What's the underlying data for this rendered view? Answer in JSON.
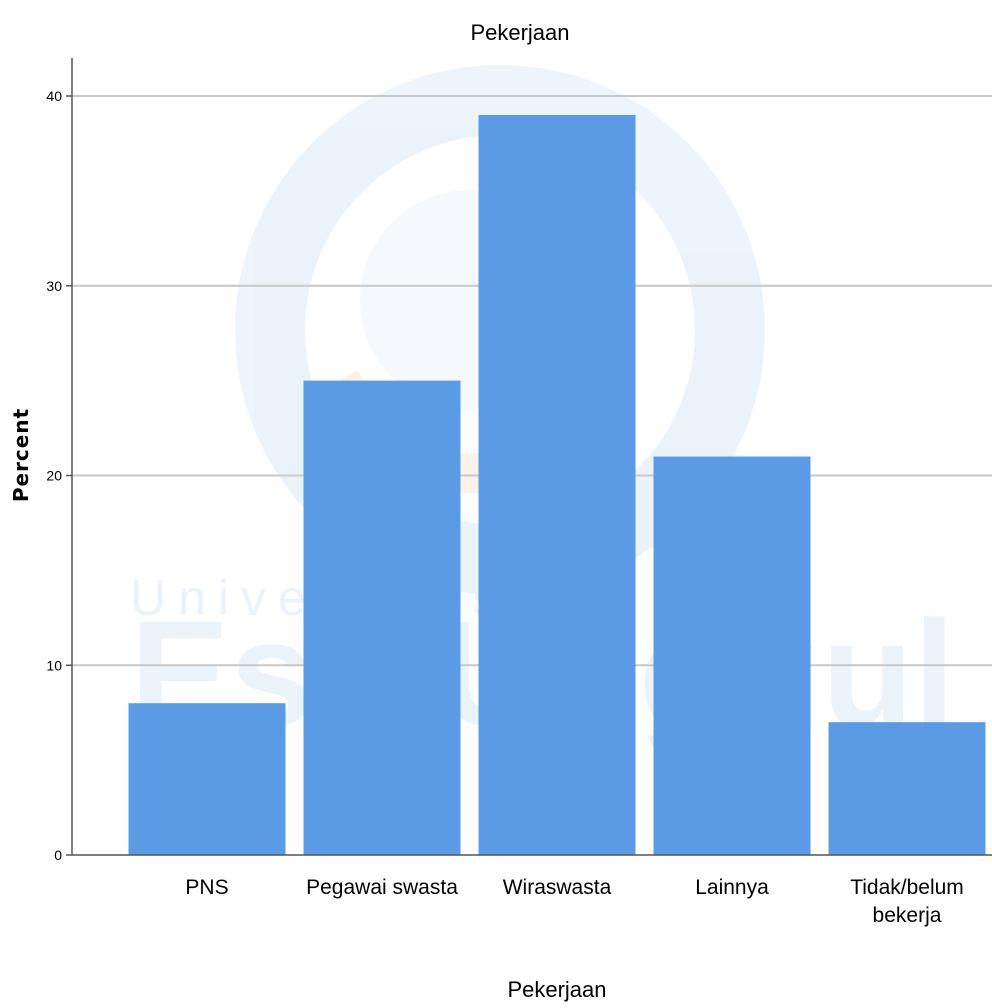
{
  "chart_data": {
    "type": "bar",
    "title": "Pekerjaan",
    "xlabel": "Pekerjaan",
    "ylabel": "Percent",
    "categories": [
      [
        "PNS"
      ],
      [
        "Pegawai swasta"
      ],
      [
        "Wiraswasta"
      ],
      [
        "Lainnya"
      ],
      [
        "Tidak/belum",
        "bekerja"
      ]
    ],
    "values": [
      8,
      25,
      39,
      21,
      7
    ],
    "ylim": [
      0,
      42
    ],
    "yticks": [
      0,
      10,
      20,
      30,
      40
    ],
    "grid": true,
    "bar_color": "#5b9be6"
  },
  "watermark": {
    "line1": "Universitas",
    "line2": "Esa Unggul",
    "color": "#4a8fd8"
  }
}
